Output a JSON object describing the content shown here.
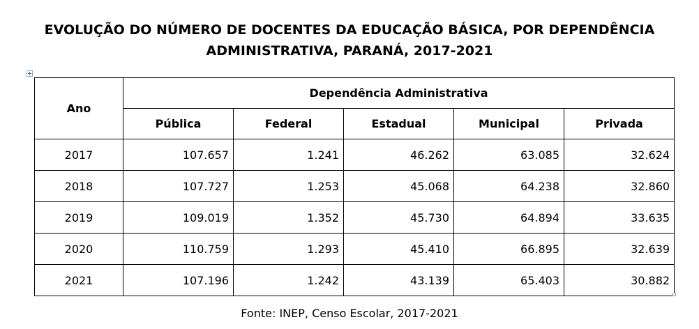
{
  "title": {
    "line1": "EVOLUÇÃO DO NÚMERO DE DOCENTES DA EDUCAÇÃO BÁSICA, POR DEPENDÊNCIA",
    "line2": "ADMINISTRATIVA, PARANÁ, 2017-2021"
  },
  "table": {
    "year_header": "Ano",
    "group_header": "Dependência Administrativa",
    "columns": [
      "Pública",
      "Federal",
      "Estadual",
      "Municipal",
      "Privada"
    ],
    "rows": [
      {
        "year": "2017",
        "values": [
          "107.657",
          "1.241",
          "46.262",
          "63.085",
          "32.624"
        ]
      },
      {
        "year": "2018",
        "values": [
          "107.727",
          "1.253",
          "45.068",
          "64.238",
          "32.860"
        ]
      },
      {
        "year": "2019",
        "values": [
          "109.019",
          "1.352",
          "45.730",
          "64.894",
          "33.635"
        ]
      },
      {
        "year": "2020",
        "values": [
          "110.759",
          "1.293",
          "45.410",
          "66.895",
          "32.639"
        ]
      },
      {
        "year": "2021",
        "values": [
          "107.196",
          "1.242",
          "43.139",
          "65.403",
          "30.882"
        ]
      }
    ]
  },
  "source": "Fonte: INEP, Censo Escolar, 2017-2021",
  "icons": {
    "table_handle": "table-move-handle-icon",
    "resize_handle": "table-resize-handle-icon"
  }
}
